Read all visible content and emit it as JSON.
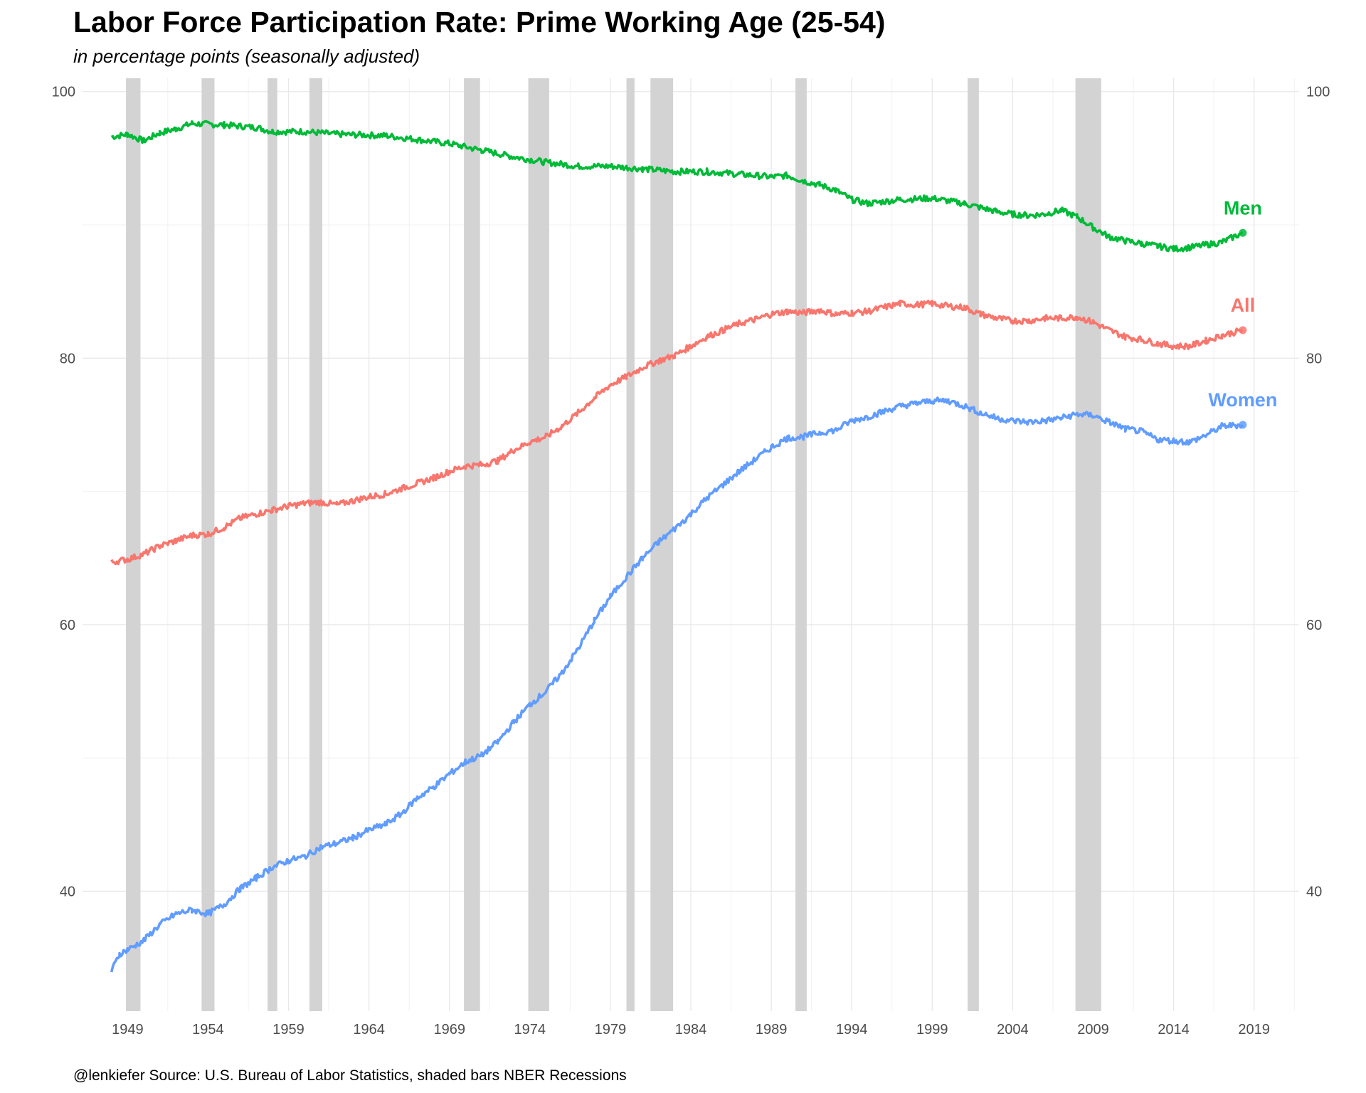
{
  "title": "Labor Force Participation Rate: Prime Working Age (25-54)",
  "subtitle": "in percentage points (seasonally adjusted)",
  "caption": "@lenkiefer Source: U.S. Bureau of Labor Statistics, shaded bars NBER Recessions",
  "chart_data": {
    "type": "line",
    "x_label_years": [
      1949,
      1954,
      1959,
      1964,
      1969,
      1974,
      1979,
      1984,
      1989,
      1994,
      1999,
      2004,
      2009,
      2014,
      2019
    ],
    "xlim": [
      1946.2,
      2021.8
    ],
    "ylim": [
      31.0,
      101.0
    ],
    "y_ticks": [
      40,
      60,
      80,
      100
    ],
    "y_tick_labels": [
      "40",
      "60",
      "80",
      "100"
    ],
    "secondary_y_axis": true,
    "grid": true,
    "recessions": [
      [
        1948.9,
        1949.8
      ],
      [
        1953.6,
        1954.4
      ],
      [
        1957.7,
        1958.3
      ],
      [
        1960.3,
        1961.1
      ],
      [
        1969.9,
        1970.9
      ],
      [
        1973.9,
        1975.2
      ],
      [
        1980.0,
        1980.5
      ],
      [
        1981.5,
        1982.9
      ],
      [
        1990.5,
        1991.2
      ],
      [
        2001.2,
        2001.9
      ],
      [
        2007.9,
        2009.5
      ]
    ],
    "series": [
      {
        "name": "Men",
        "color": "#00ba38",
        "points": [
          [
            1948,
            96.6
          ],
          [
            1949,
            96.8
          ],
          [
            1950,
            96.3
          ],
          [
            1951,
            96.9
          ],
          [
            1952,
            97.2
          ],
          [
            1953,
            97.6
          ],
          [
            1955,
            97.5
          ],
          [
            1957,
            97.3
          ],
          [
            1958,
            97.0
          ],
          [
            1960,
            97.0
          ],
          [
            1962,
            96.8
          ],
          [
            1965,
            96.7
          ],
          [
            1967,
            96.4
          ],
          [
            1969,
            96.1
          ],
          [
            1971,
            95.6
          ],
          [
            1973,
            95.1
          ],
          [
            1975,
            94.7
          ],
          [
            1977,
            94.4
          ],
          [
            1979,
            94.4
          ],
          [
            1981,
            94.2
          ],
          [
            1983,
            94.0
          ],
          [
            1985,
            94.0
          ],
          [
            1987,
            93.8
          ],
          [
            1989,
            93.6
          ],
          [
            1990,
            93.7
          ],
          [
            1991,
            93.3
          ],
          [
            1992,
            93.0
          ],
          [
            1993,
            92.6
          ],
          [
            1994,
            91.9
          ],
          [
            1995,
            91.6
          ],
          [
            1997,
            91.9
          ],
          [
            1999,
            92.0
          ],
          [
            2001,
            91.6
          ],
          [
            2002,
            91.3
          ],
          [
            2003,
            91.0
          ],
          [
            2004,
            90.8
          ],
          [
            2005,
            90.7
          ],
          [
            2006,
            90.8
          ],
          [
            2007,
            91.1
          ],
          [
            2008,
            90.6
          ],
          [
            2009,
            89.8
          ],
          [
            2010,
            89.1
          ],
          [
            2011,
            88.8
          ],
          [
            2012,
            88.6
          ],
          [
            2013,
            88.4
          ],
          [
            2014,
            88.2
          ],
          [
            2015,
            88.3
          ],
          [
            2016,
            88.5
          ],
          [
            2017,
            88.7
          ],
          [
            2018.3,
            89.4
          ]
        ]
      },
      {
        "name": "All",
        "color": "#f8766d",
        "points": [
          [
            1948,
            64.7
          ],
          [
            1949,
            64.9
          ],
          [
            1950,
            65.3
          ],
          [
            1951,
            65.9
          ],
          [
            1952,
            66.3
          ],
          [
            1953,
            66.7
          ],
          [
            1954,
            66.8
          ],
          [
            1955,
            67.3
          ],
          [
            1956,
            68.0
          ],
          [
            1957,
            68.3
          ],
          [
            1958,
            68.6
          ],
          [
            1959,
            68.9
          ],
          [
            1960,
            69.1
          ],
          [
            1961,
            69.2
          ],
          [
            1962,
            69.0
          ],
          [
            1963,
            69.3
          ],
          [
            1964,
            69.6
          ],
          [
            1965,
            69.8
          ],
          [
            1966,
            70.2
          ],
          [
            1967,
            70.6
          ],
          [
            1968,
            71.0
          ],
          [
            1969,
            71.5
          ],
          [
            1970,
            71.9
          ],
          [
            1971,
            72.0
          ],
          [
            1972,
            72.3
          ],
          [
            1973,
            73.1
          ],
          [
            1974,
            73.7
          ],
          [
            1975,
            74.1
          ],
          [
            1976,
            74.9
          ],
          [
            1977,
            75.9
          ],
          [
            1978,
            77.0
          ],
          [
            1979,
            78.0
          ],
          [
            1980,
            78.6
          ],
          [
            1981,
            79.3
          ],
          [
            1982,
            79.8
          ],
          [
            1983,
            80.2
          ],
          [
            1984,
            80.9
          ],
          [
            1985,
            81.6
          ],
          [
            1986,
            82.1
          ],
          [
            1987,
            82.6
          ],
          [
            1988,
            82.9
          ],
          [
            1989,
            83.3
          ],
          [
            1990,
            83.5
          ],
          [
            1991,
            83.4
          ],
          [
            1992,
            83.6
          ],
          [
            1993,
            83.3
          ],
          [
            1994,
            83.4
          ],
          [
            1995,
            83.5
          ],
          [
            1996,
            83.8
          ],
          [
            1997,
            84.1
          ],
          [
            1998,
            84.0
          ],
          [
            1999,
            84.1
          ],
          [
            2000,
            83.9
          ],
          [
            2001,
            83.8
          ],
          [
            2002,
            83.3
          ],
          [
            2003,
            83.0
          ],
          [
            2004,
            82.8
          ],
          [
            2005,
            82.8
          ],
          [
            2006,
            83.0
          ],
          [
            2007,
            83.0
          ],
          [
            2008,
            83.1
          ],
          [
            2009,
            82.7
          ],
          [
            2010,
            82.1
          ],
          [
            2011,
            81.6
          ],
          [
            2012,
            81.4
          ],
          [
            2013,
            81.1
          ],
          [
            2014,
            80.9
          ],
          [
            2015,
            80.9
          ],
          [
            2016,
            81.3
          ],
          [
            2017,
            81.7
          ],
          [
            2018.3,
            82.1
          ]
        ]
      },
      {
        "name": "Women",
        "color": "#619cff",
        "points": [
          [
            1948,
            34.0
          ],
          [
            1948.5,
            35.3
          ],
          [
            1949,
            35.6
          ],
          [
            1950,
            36.3
          ],
          [
            1951,
            37.5
          ],
          [
            1952,
            38.3
          ],
          [
            1953,
            38.6
          ],
          [
            1954,
            38.3
          ],
          [
            1955,
            39.0
          ],
          [
            1956,
            40.2
          ],
          [
            1957,
            41.0
          ],
          [
            1958,
            41.8
          ],
          [
            1959,
            42.3
          ],
          [
            1960,
            42.6
          ],
          [
            1961,
            43.3
          ],
          [
            1962,
            43.6
          ],
          [
            1963,
            44.0
          ],
          [
            1964,
            44.6
          ],
          [
            1965,
            45.0
          ],
          [
            1966,
            45.8
          ],
          [
            1967,
            47.0
          ],
          [
            1968,
            47.8
          ],
          [
            1969,
            48.8
          ],
          [
            1970,
            49.7
          ],
          [
            1971,
            50.2
          ],
          [
            1972,
            51.2
          ],
          [
            1973,
            52.7
          ],
          [
            1974,
            54.0
          ],
          [
            1975,
            55.0
          ],
          [
            1976,
            56.4
          ],
          [
            1977,
            58.2
          ],
          [
            1978,
            60.3
          ],
          [
            1979,
            62.1
          ],
          [
            1980,
            63.6
          ],
          [
            1981,
            65.0
          ],
          [
            1982,
            66.2
          ],
          [
            1983,
            67.2
          ],
          [
            1984,
            68.3
          ],
          [
            1985,
            69.5
          ],
          [
            1986,
            70.5
          ],
          [
            1987,
            71.5
          ],
          [
            1988,
            72.4
          ],
          [
            1989,
            73.3
          ],
          [
            1990,
            74.0
          ],
          [
            1991,
            74.1
          ],
          [
            1992,
            74.4
          ],
          [
            1993,
            74.6
          ],
          [
            1994,
            75.3
          ],
          [
            1995,
            75.6
          ],
          [
            1996,
            76.0
          ],
          [
            1997,
            76.4
          ],
          [
            1998,
            76.6
          ],
          [
            1999,
            76.8
          ],
          [
            2000,
            76.8
          ],
          [
            2001,
            76.4
          ],
          [
            2002,
            75.9
          ],
          [
            2003,
            75.5
          ],
          [
            2004,
            75.3
          ],
          [
            2005,
            75.2
          ],
          [
            2006,
            75.3
          ],
          [
            2007,
            75.5
          ],
          [
            2008,
            75.8
          ],
          [
            2009,
            75.7
          ],
          [
            2010,
            75.2
          ],
          [
            2011,
            74.7
          ],
          [
            2012,
            74.5
          ],
          [
            2013,
            73.9
          ],
          [
            2014,
            73.8
          ],
          [
            2015,
            73.7
          ],
          [
            2016,
            74.2
          ],
          [
            2017,
            74.9
          ],
          [
            2018.3,
            75.0
          ]
        ]
      }
    ]
  }
}
